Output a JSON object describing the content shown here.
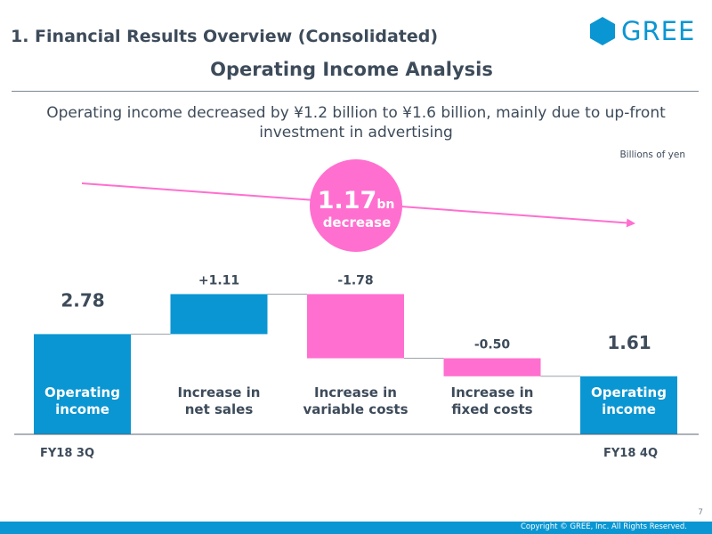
{
  "header": {
    "section_title": "1. Financial Results Overview (Consolidated)",
    "logo_text": "GREE",
    "slide_title": "Operating Income Analysis"
  },
  "subtitle": "Operating income decreased by ¥1.2 billion to ¥1.6 billion, mainly due to up-front investment in advertising",
  "unit_label": "Billions of yen",
  "callout": {
    "value": "1.17",
    "suffix": "bn",
    "label": "decrease"
  },
  "colors": {
    "total": "#0a96d2",
    "increase": "#0a96d2",
    "decrease": "#ff6fcf",
    "text": "#3d4b5a",
    "callout": "#ff6fcf",
    "connector": "#9aa3ab"
  },
  "chart_data": {
    "type": "waterfall",
    "title": "Operating Income Analysis",
    "unit": "Billions of yen",
    "steps": [
      {
        "label": [
          "Operating",
          "income"
        ],
        "kind": "total",
        "start": 0,
        "end": 2.78,
        "value_label": "2.78",
        "period": "FY18 3Q"
      },
      {
        "label": [
          "Increase in",
          "net sales"
        ],
        "kind": "increase",
        "start": 2.78,
        "end": 3.89,
        "value_label": "+1.11",
        "period": ""
      },
      {
        "label": [
          "Increase in",
          "variable costs"
        ],
        "kind": "decrease",
        "start": 3.89,
        "end": 2.11,
        "value_label": "-1.78",
        "period": ""
      },
      {
        "label": [
          "Increase in",
          "fixed costs"
        ],
        "kind": "decrease",
        "start": 2.11,
        "end": 1.61,
        "value_label": "-0.50",
        "period": ""
      },
      {
        "label": [
          "Operating",
          "income"
        ],
        "kind": "total",
        "start": 0,
        "end": 1.61,
        "value_label": "1.61",
        "period": "FY18 4Q"
      }
    ],
    "change": {
      "value": 1.17,
      "direction": "decrease"
    },
    "ylim": [
      0,
      3.89
    ]
  },
  "footer": {
    "copyright": "Copyright © GREE, Inc. All Rights Reserved.",
    "page_number": "7"
  }
}
